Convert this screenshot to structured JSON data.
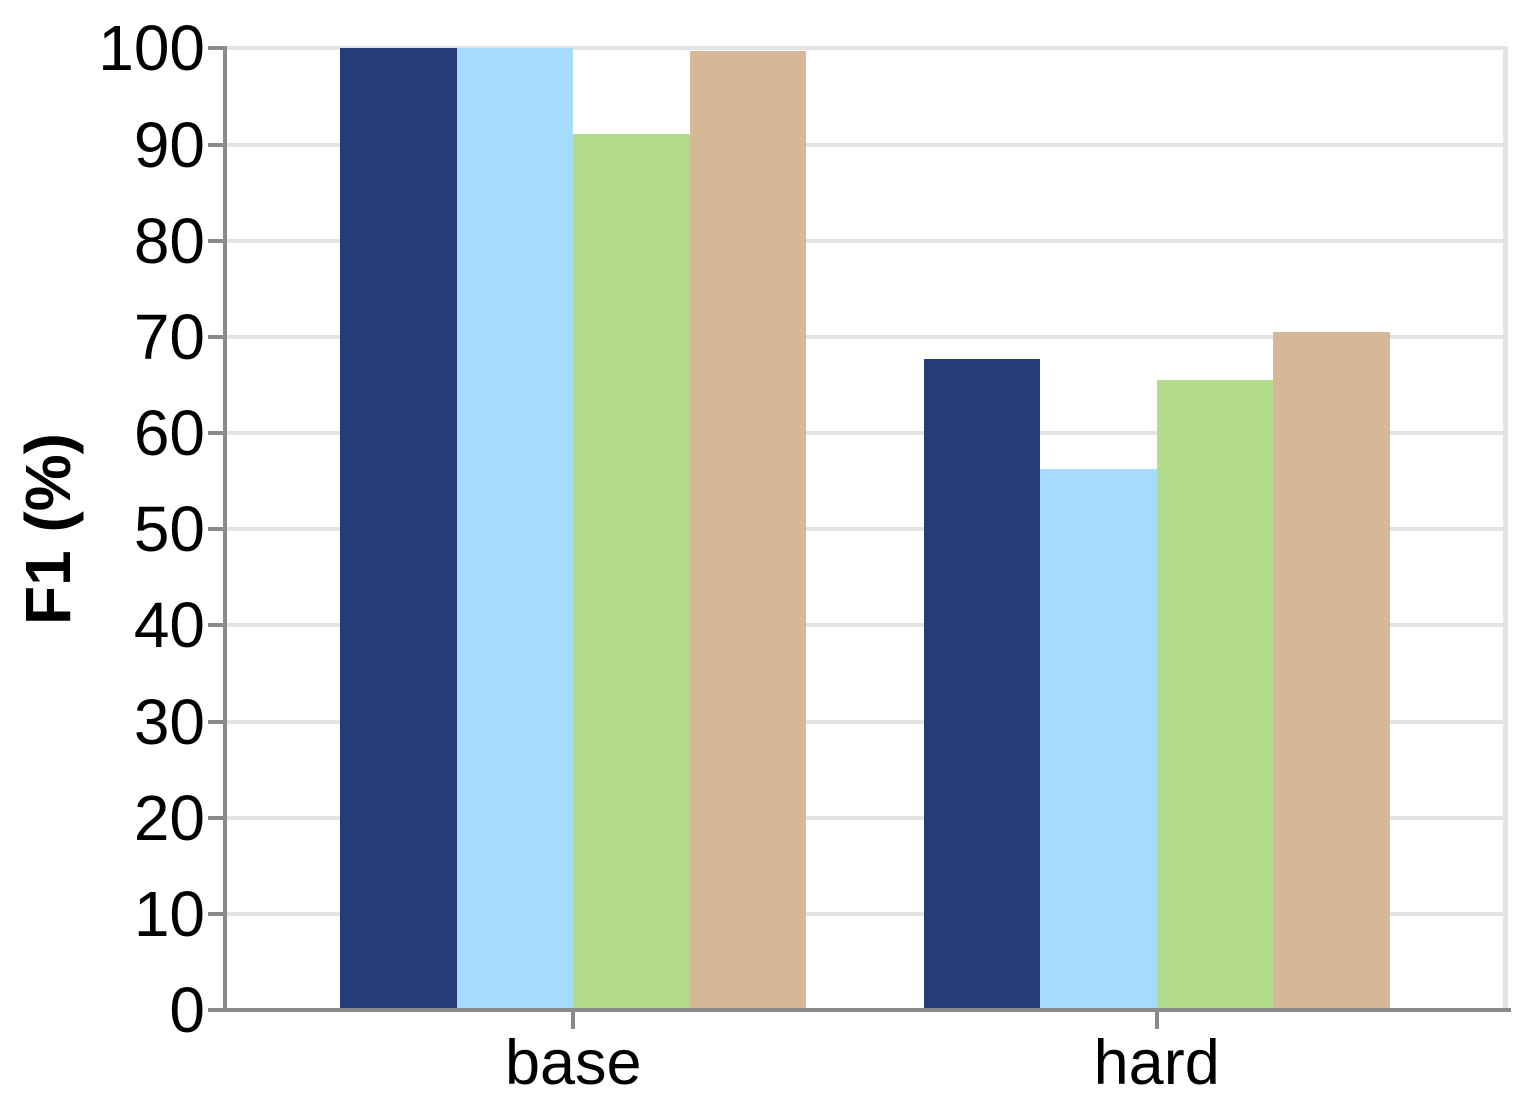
{
  "chart_data": {
    "type": "bar",
    "title": "",
    "xlabel": "",
    "ylabel": "F1 (%)",
    "categories": [
      "base",
      "hard"
    ],
    "series": [
      {
        "name": "navy",
        "color": "#253c7b",
        "values": [
          100.0,
          67.7
        ]
      },
      {
        "name": "light-blue",
        "color": "#a5dbfb",
        "values": [
          100.0,
          56.3
        ]
      },
      {
        "name": "green",
        "color": "#b4dc8d",
        "values": [
          91.1,
          65.5
        ]
      },
      {
        "name": "tan",
        "color": "#d6b897",
        "values": [
          99.7,
          70.5
        ]
      }
    ],
    "ylim": [
      0,
      100
    ],
    "yticks": [
      0,
      10,
      20,
      30,
      40,
      50,
      60,
      70,
      80,
      90,
      100
    ],
    "grid": true,
    "grid_axis": "y",
    "legend_position": "none",
    "colors": {
      "axis": "#8a8a8a",
      "gridline": "#e3e3e3",
      "background": "#ffffff",
      "text": "#000000"
    }
  }
}
